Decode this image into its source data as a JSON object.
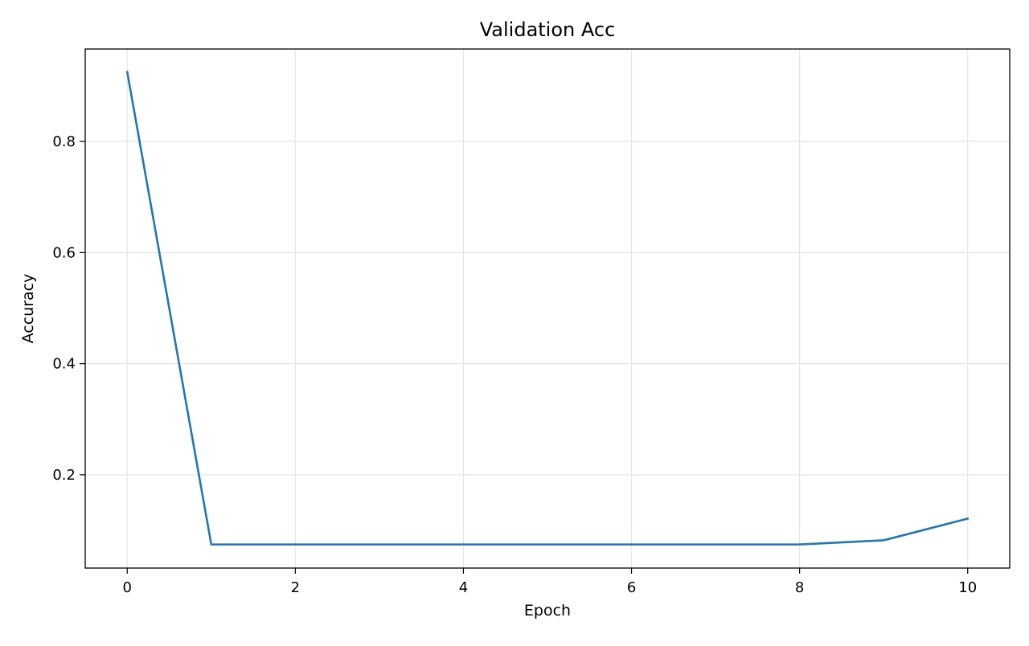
{
  "chart_data": {
    "type": "line",
    "title": "Validation Acc",
    "xlabel": "Epoch",
    "ylabel": "Accuracy",
    "xlim": [
      -0.5,
      10.5
    ],
    "ylim": [
      0.032,
      0.9665
    ],
    "xticks": [
      0,
      2,
      4,
      6,
      8,
      10
    ],
    "xtick_labels": [
      "0",
      "2",
      "4",
      "6",
      "8",
      "10"
    ],
    "yticks": [
      0.2,
      0.4,
      0.6,
      0.8
    ],
    "ytick_labels": [
      "0.2",
      "0.4",
      "0.6",
      "0.8"
    ],
    "grid": true,
    "legend": "none",
    "x": [
      0,
      1,
      2,
      3,
      4,
      5,
      6,
      7,
      8,
      9,
      10
    ],
    "series": [
      {
        "color": "#1f77b4",
        "values": [
          0.925,
          0.0745,
          0.0745,
          0.0745,
          0.0745,
          0.0745,
          0.0745,
          0.0745,
          0.0745,
          0.082,
          0.121
        ]
      }
    ]
  }
}
